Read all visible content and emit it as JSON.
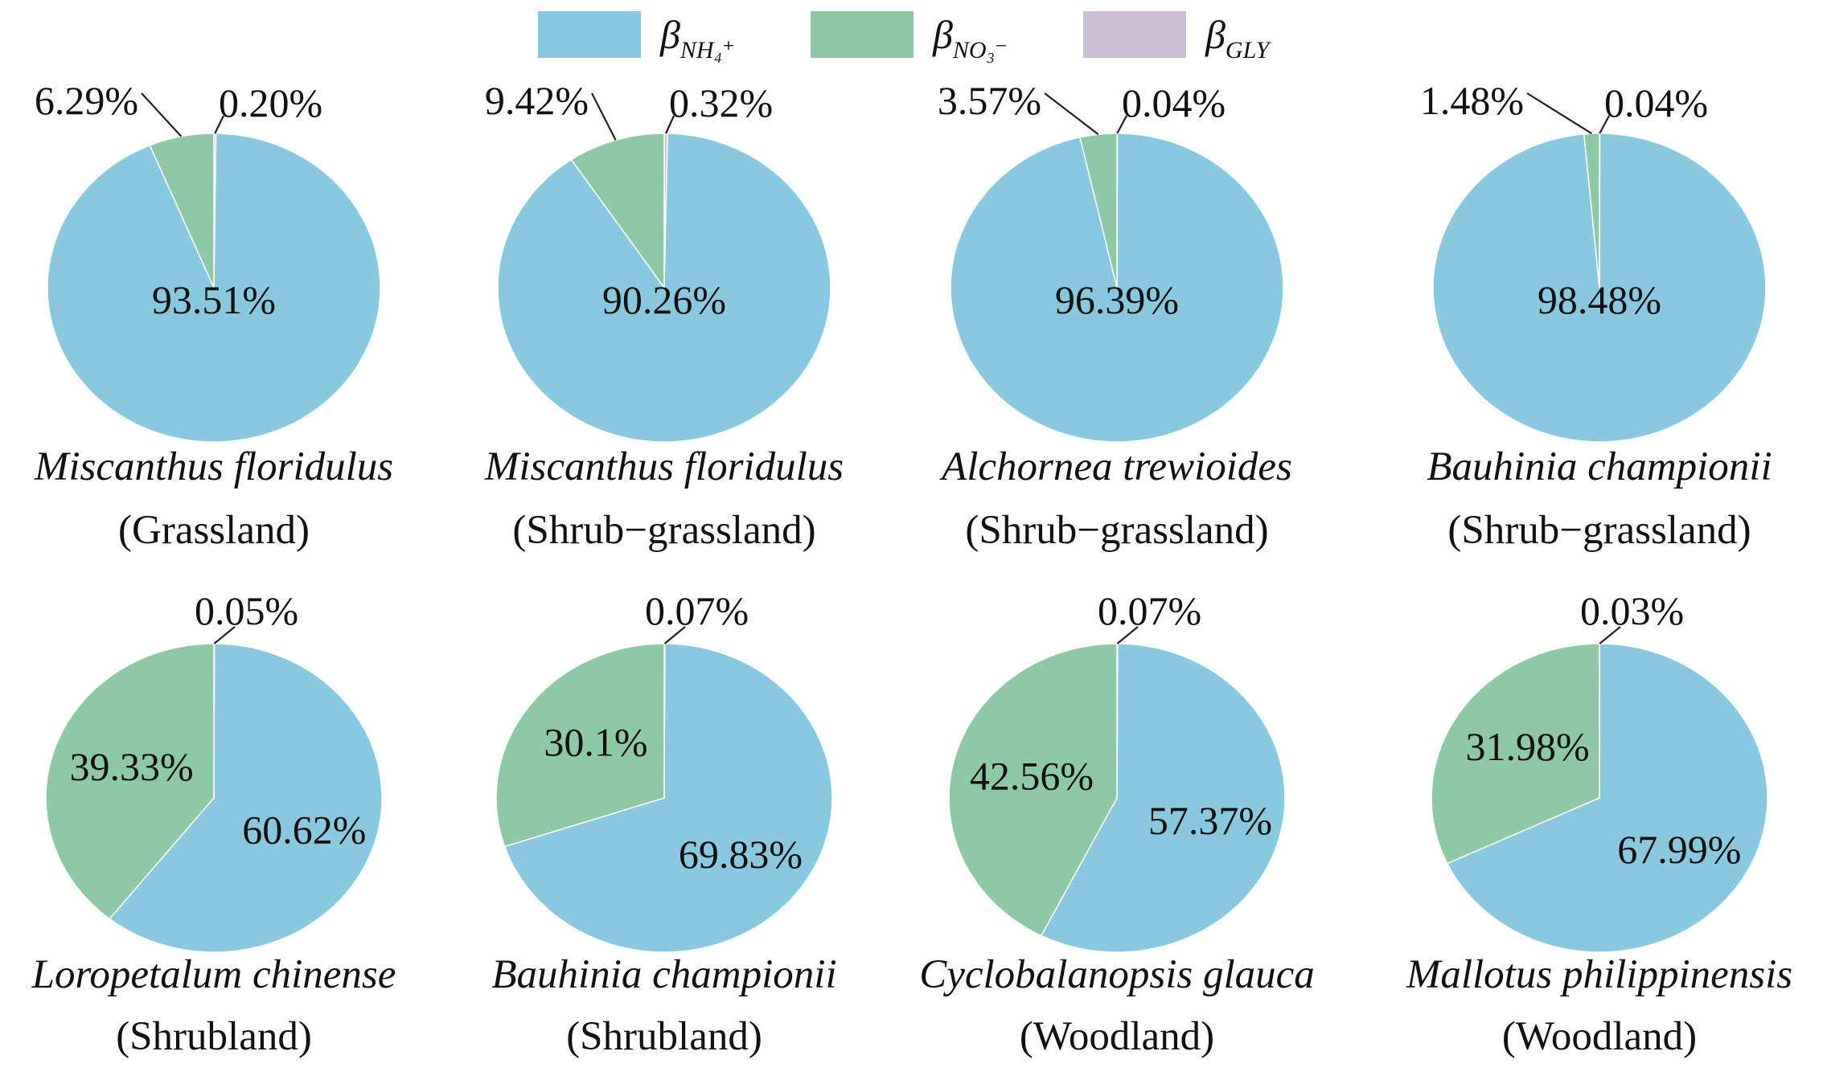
{
  "chart_data": {
    "type": "pie",
    "legend": {
      "placement": "top-center",
      "entries": [
        {
          "key": "nh4",
          "symbol": "β",
          "subscript": "NH₄⁺",
          "color": "#89c9df"
        },
        {
          "key": "no3",
          "symbol": "β",
          "subscript": "NO₃⁻",
          "color": "#8dc9a5"
        },
        {
          "key": "gly",
          "symbol": "β",
          "subscript": "GLY",
          "color": "#cbc0d3"
        }
      ]
    },
    "pies": [
      {
        "species": "Miscanthus floridulus",
        "habitat": "(Grassland)",
        "values": {
          "nh4": 93.51,
          "no3": 6.29,
          "gly": 0.2
        },
        "labels": {
          "nh4": "93.51%",
          "no3": "6.29%",
          "gly": "0.20%"
        }
      },
      {
        "species": "Miscanthus floridulus",
        "habitat": "(Shrub−grassland)",
        "values": {
          "nh4": 90.26,
          "no3": 9.42,
          "gly": 0.32
        },
        "labels": {
          "nh4": "90.26%",
          "no3": "9.42%",
          "gly": "0.32%"
        }
      },
      {
        "species": "Alchornea trewioides",
        "habitat": "(Shrub−grassland)",
        "values": {
          "nh4": 96.39,
          "no3": 3.57,
          "gly": 0.04
        },
        "labels": {
          "nh4": "96.39%",
          "no3": "3.57%",
          "gly": "0.04%"
        }
      },
      {
        "species": "Bauhinia championii",
        "habitat": "(Shrub−grassland)",
        "values": {
          "nh4": 98.48,
          "no3": 1.48,
          "gly": 0.04
        },
        "labels": {
          "nh4": "98.48%",
          "no3": "1.48%",
          "gly": "0.04%"
        }
      },
      {
        "species": "Loropetalum chinense",
        "habitat": "(Shrubland)",
        "values": {
          "nh4": 60.62,
          "no3": 39.33,
          "gly": 0.05
        },
        "labels": {
          "nh4": "60.62%",
          "no3": "39.33%",
          "gly": "0.05%"
        }
      },
      {
        "species": "Bauhinia championii",
        "habitat": "(Shrubland)",
        "values": {
          "nh4": 69.83,
          "no3": 30.1,
          "gly": 0.07
        },
        "labels": {
          "nh4": "69.83%",
          "no3": "30.1%",
          "gly": "0.07%"
        }
      },
      {
        "species": "Cyclobalanopsis glauca",
        "habitat": "(Woodland)",
        "values": {
          "nh4": 57.37,
          "no3": 42.56,
          "gly": 0.07
        },
        "labels": {
          "nh4": "57.37%",
          "no3": "42.56%",
          "gly": "0.07%"
        }
      },
      {
        "species": "Mallotus philippinensis",
        "habitat": "(Woodland)",
        "values": {
          "nh4": 67.99,
          "no3": 31.98,
          "gly": 0.03
        },
        "labels": {
          "nh4": "67.99%",
          "no3": "31.98%",
          "gly": "0.03%"
        }
      }
    ]
  }
}
